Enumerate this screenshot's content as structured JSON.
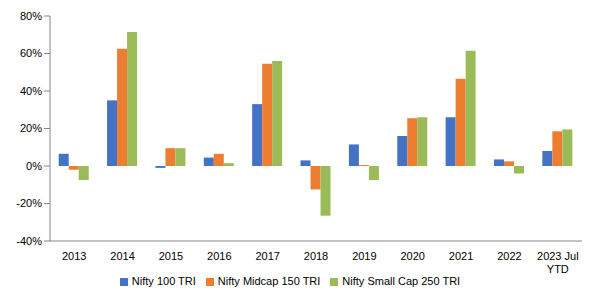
{
  "chart_data": {
    "type": "bar",
    "categories": [
      "2013",
      "2014",
      "2015",
      "2016",
      "2017",
      "2018",
      "2019",
      "2020",
      "2021",
      "2022",
      "2023 Jul YTD"
    ],
    "series": [
      {
        "name": "Nifty 100 TRI",
        "color": "#4472c4",
        "values": [
          6.5,
          35,
          -1,
          4.5,
          33,
          3,
          11.5,
          16,
          26,
          3.5,
          8
        ]
      },
      {
        "name": "Nifty Midcap 150 TRI",
        "color": "#ed7d31",
        "values": [
          -2,
          62.5,
          9.5,
          6.5,
          54.5,
          -12.5,
          0.5,
          25.5,
          46.5,
          2.5,
          18.5
        ]
      },
      {
        "name": "Nifty Small Cap 250 TRI",
        "color": "#9bbb59",
        "values": [
          -7.5,
          71.5,
          9.5,
          1.5,
          56,
          -26.5,
          -7.5,
          26,
          61.5,
          -4,
          19.5
        ]
      }
    ],
    "ylim": [
      -40,
      80
    ],
    "yticks": [
      {
        "value": -40,
        "label": "-40%"
      },
      {
        "value": -20,
        "label": "-20%"
      },
      {
        "value": 0,
        "label": "0%"
      },
      {
        "value": 20,
        "label": "20%"
      },
      {
        "value": 40,
        "label": "40%"
      },
      {
        "value": 60,
        "label": "60%"
      },
      {
        "value": 80,
        "label": "80%"
      }
    ],
    "grid": false,
    "legend": "bottom"
  }
}
